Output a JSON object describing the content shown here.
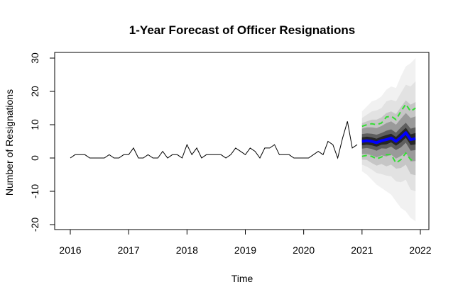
{
  "chart_data": {
    "type": "line",
    "title": "1-Year Forecast of Officer Resignations",
    "xlabel": "Time",
    "ylabel": "Number of Resignations",
    "xlim": [
      2016,
      2022
    ],
    "ylim": [
      -20,
      30
    ],
    "x_ticks": [
      "2016",
      "2017",
      "2018",
      "2019",
      "2020",
      "2021",
      "2022"
    ],
    "y_ticks": [
      "-20",
      "-10",
      "0",
      "10",
      "20",
      "30"
    ],
    "grid": false,
    "legend": "none",
    "series": [
      {
        "role": "observed",
        "color": "#000000",
        "x": [
          2016.0,
          2016.083,
          2016.167,
          2016.25,
          2016.333,
          2016.417,
          2016.5,
          2016.583,
          2016.667,
          2016.75,
          2016.833,
          2016.917,
          2017.0,
          2017.083,
          2017.167,
          2017.25,
          2017.333,
          2017.417,
          2017.5,
          2017.583,
          2017.667,
          2017.75,
          2017.833,
          2017.917,
          2018.0,
          2018.083,
          2018.167,
          2018.25,
          2018.333,
          2018.417,
          2018.5,
          2018.583,
          2018.667,
          2018.75,
          2018.833,
          2018.917,
          2019.0,
          2019.083,
          2019.167,
          2019.25,
          2019.333,
          2019.417,
          2019.5,
          2019.583,
          2019.667,
          2019.75,
          2019.833,
          2019.917,
          2020.0,
          2020.083,
          2020.167,
          2020.25,
          2020.333,
          2020.417,
          2020.5,
          2020.583,
          2020.667,
          2020.75,
          2020.833,
          2020.917
        ],
        "values": [
          0,
          1,
          1,
          1,
          0,
          0,
          0,
          0,
          1,
          0,
          0,
          1,
          1,
          3,
          0,
          0,
          1,
          0,
          0,
          2,
          0,
          1,
          1,
          0,
          4,
          1,
          3,
          0,
          1,
          1,
          1,
          1,
          0,
          1,
          3,
          2,
          1,
          3,
          2,
          0,
          3,
          3,
          4,
          1,
          1,
          1,
          0,
          0,
          0,
          0,
          1,
          2,
          1,
          5,
          4,
          0,
          6,
          11,
          3,
          4
        ]
      },
      {
        "role": "forecast-mean",
        "color": "#0000ff",
        "x": [
          2021.0,
          2021.083,
          2021.167,
          2021.25,
          2021.333,
          2021.417,
          2021.5,
          2021.583,
          2021.667,
          2021.75,
          2021.833,
          2021.917
        ],
        "values": [
          5,
          5.2,
          5,
          4.6,
          5.2,
          5.5,
          6,
          5,
          6.2,
          7.6,
          5.5,
          5.8
        ]
      },
      {
        "role": "forecast-upper-80",
        "color": "#33dd33",
        "x": [
          2021.0,
          2021.083,
          2021.167,
          2021.25,
          2021.333,
          2021.417,
          2021.5,
          2021.583,
          2021.667,
          2021.75,
          2021.833,
          2021.917
        ],
        "values": [
          9.5,
          10,
          10.3,
          10,
          10.5,
          12.3,
          12.6,
          11.5,
          14,
          16.2,
          14,
          15
        ]
      },
      {
        "role": "forecast-lower-80",
        "color": "#33dd33",
        "x": [
          2021.0,
          2021.083,
          2021.167,
          2021.25,
          2021.333,
          2021.417,
          2021.5,
          2021.583,
          2021.667,
          2021.75,
          2021.833,
          2021.917
        ],
        "values": [
          0.5,
          0.8,
          0.5,
          -0.3,
          0.3,
          1,
          1,
          -1.5,
          -0.5,
          1.5,
          -0.5,
          -0.8
        ]
      }
    ],
    "fan_bands": {
      "x": [
        2021.0,
        2021.083,
        2021.167,
        2021.25,
        2021.333,
        2021.417,
        2021.5,
        2021.583,
        2021.667,
        2021.75,
        2021.833,
        2021.917
      ],
      "levels": [
        {
          "color": "#f1f1f1",
          "upper": [
            14,
            15.5,
            17,
            17.5,
            18.5,
            20.5,
            21.5,
            21,
            24.5,
            27.5,
            28.5,
            30
          ],
          "lower": [
            -4,
            -5,
            -6.5,
            -8,
            -9,
            -10,
            -11,
            -13,
            -15,
            -16,
            -18,
            -19
          ]
        },
        {
          "color": "#e2e2e2",
          "upper": [
            12,
            13,
            14,
            14.3,
            15,
            17,
            17.5,
            17,
            19.5,
            22,
            21.5,
            23
          ],
          "lower": [
            -2,
            -2.6,
            -3.5,
            -4.5,
            -4.8,
            -5.3,
            -5.5,
            -7,
            -7.3,
            -6.5,
            -9.5,
            -10
          ]
        },
        {
          "color": "#c6c6c6",
          "upper": [
            10.5,
            11,
            11.5,
            11.5,
            12.2,
            13.5,
            14,
            13.2,
            15.3,
            17.3,
            16,
            16.8
          ],
          "lower": [
            -0.5,
            -0.6,
            -1.5,
            -2.3,
            -1.8,
            -2.5,
            -2,
            -3.2,
            -3,
            -2,
            -4.8,
            -5.2
          ]
        },
        {
          "color": "#9a9a9a",
          "upper": [
            8.8,
            9.2,
            9.2,
            9,
            9.6,
            10.5,
            11,
            10,
            11.8,
            13.5,
            12,
            12.5
          ],
          "lower": [
            1.2,
            1.2,
            0.8,
            0.2,
            0.8,
            0.5,
            1,
            -0.2,
            0.6,
            1.7,
            -1,
            -0.9
          ]
        },
        {
          "color": "#5e5e5e",
          "upper": [
            7.2,
            7.4,
            7.3,
            7,
            7.5,
            8.2,
            8.6,
            7.6,
            9.2,
            10.6,
            8.8,
            9.2
          ],
          "lower": [
            2.8,
            3,
            2.7,
            2.2,
            2.9,
            2.8,
            3.4,
            2.4,
            3.2,
            4.6,
            2.2,
            2.4
          ]
        },
        {
          "color": "#262626",
          "upper": [
            6.2,
            6.4,
            6.2,
            5.8,
            6.4,
            6.9,
            7.3,
            6.3,
            7.7,
            9.1,
            7.1,
            7.5
          ],
          "lower": [
            3.8,
            4,
            3.8,
            3.4,
            4,
            4.1,
            4.7,
            3.7,
            4.7,
            6.1,
            3.9,
            4.1
          ]
        }
      ]
    }
  }
}
